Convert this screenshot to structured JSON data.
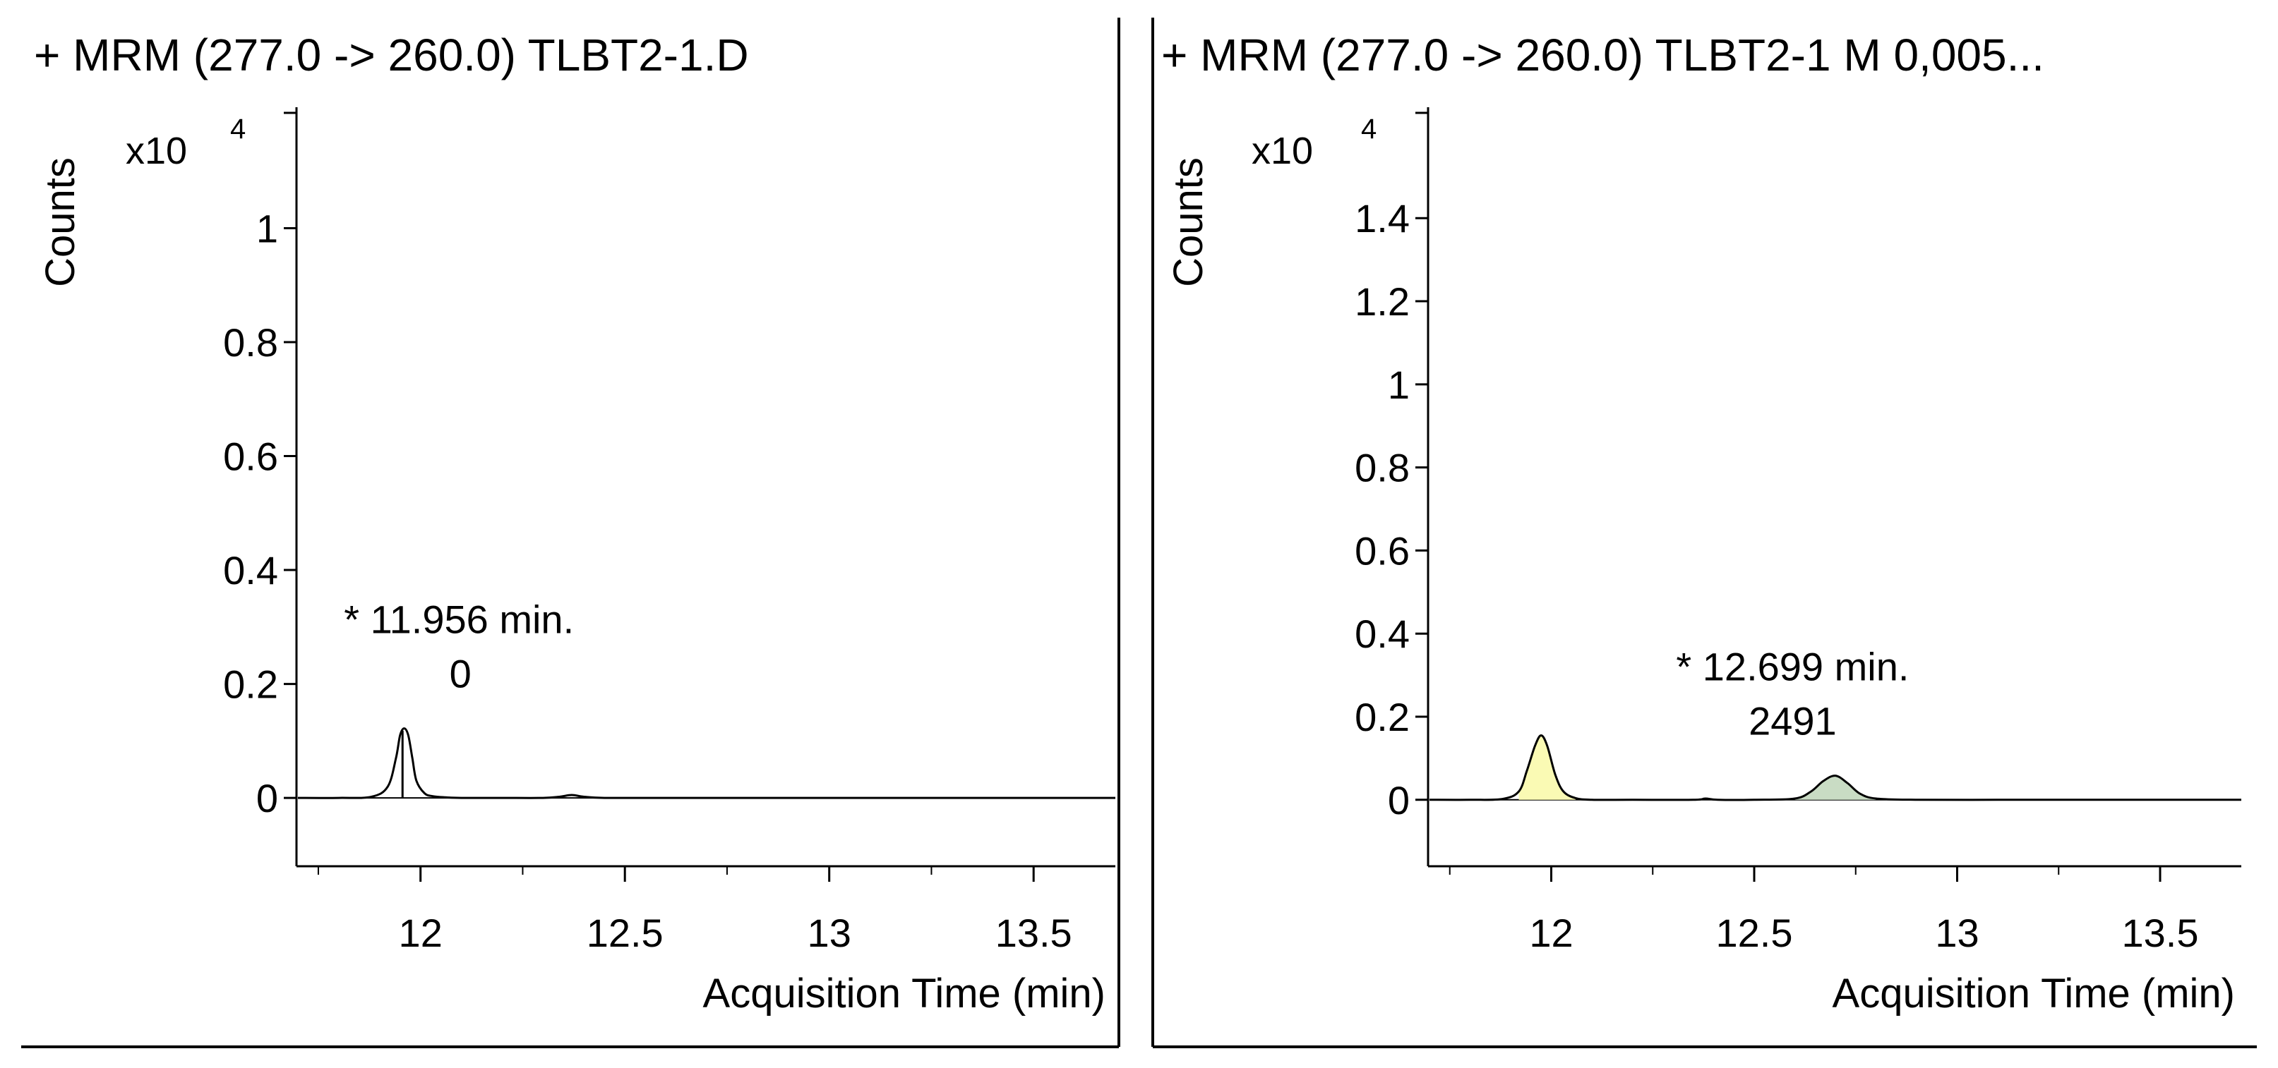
{
  "chart_data": [
    {
      "type": "line",
      "title": "+ MRM (277.0 -> 260.0) TLBT2-1.D",
      "xlabel": "Acquisition Time (min)",
      "ylabel": "Counts",
      "y_multiplier_base": "x10",
      "y_multiplier_exp": "4",
      "xlim": [
        11.7,
        13.7
      ],
      "ylim": [
        -0.12,
        1.2
      ],
      "x_ticks": [
        12,
        12.5,
        13,
        13.5
      ],
      "x_tick_labels": [
        "12",
        "12.5",
        "13",
        "13.5"
      ],
      "y_ticks": [
        0,
        0.2,
        0.4,
        0.6,
        0.8,
        1
      ],
      "y_tick_labels": [
        "0",
        "0.2",
        "0.4",
        "0.6",
        "0.8",
        "1"
      ],
      "series": [
        {
          "x": [
            11.7,
            11.8,
            11.88,
            11.92,
            11.94,
            11.95,
            11.96,
            11.97,
            11.98,
            11.99,
            12.01,
            12.03,
            12.06,
            12.1,
            12.2,
            12.3,
            12.34,
            12.37,
            12.4,
            12.45,
            12.6,
            12.8,
            13.0,
            13.2,
            13.4,
            13.6,
            13.7
          ],
          "y": [
            0.0,
            0.0,
            0.002,
            0.02,
            0.07,
            0.11,
            0.122,
            0.11,
            0.07,
            0.03,
            0.008,
            0.003,
            0.001,
            0.0,
            0.0,
            0.0,
            0.002,
            0.005,
            0.002,
            0.0,
            0.0,
            0.0,
            0.0,
            0.0,
            0.0,
            0.0,
            0.0
          ],
          "color": "#000000"
        }
      ],
      "peaks": [
        {
          "rt": 11.956,
          "label_rt": "* 11.956 min.",
          "label_area": "0",
          "fill": "none",
          "marker_line": true
        }
      ]
    },
    {
      "type": "line",
      "title": "+ MRM (277.0 -> 260.0) TLBT2-1 M 0,005...",
      "xlabel": "Acquisition Time (min)",
      "ylabel": "Counts",
      "y_multiplier_base": "x10",
      "y_multiplier_exp": "4",
      "xlim": [
        11.7,
        13.7
      ],
      "ylim": [
        -0.16,
        1.65
      ],
      "x_ticks": [
        12,
        12.5,
        13,
        13.5
      ],
      "x_tick_labels": [
        "12",
        "12.5",
        "13",
        "13.5"
      ],
      "y_ticks": [
        0,
        0.2,
        0.4,
        0.6,
        0.8,
        1,
        1.2,
        1.4
      ],
      "y_tick_labels": [
        "0",
        "0.2",
        "0.4",
        "0.6",
        "0.8",
        "1",
        "1.2",
        "1.4"
      ],
      "series": [
        {
          "x": [
            11.7,
            11.8,
            11.88,
            11.92,
            11.94,
            11.96,
            11.975,
            11.99,
            12.01,
            12.03,
            12.06,
            12.1,
            12.2,
            12.35,
            12.38,
            12.41,
            12.5,
            12.6,
            12.64,
            12.67,
            12.7,
            12.73,
            12.76,
            12.8,
            12.9,
            13.1,
            13.3,
            13.5,
            13.7
          ],
          "y": [
            0.0,
            0.0,
            0.002,
            0.02,
            0.07,
            0.13,
            0.155,
            0.13,
            0.06,
            0.02,
            0.004,
            0.0,
            0.0,
            0.0,
            0.003,
            0.0,
            0.0,
            0.003,
            0.02,
            0.045,
            0.058,
            0.04,
            0.015,
            0.003,
            0.0,
            0.0,
            0.0,
            0.0,
            0.0
          ],
          "color": "#000000"
        }
      ],
      "peaks": [
        {
          "rt": 11.975,
          "label_rt": "",
          "label_area": "",
          "fill": "#fafab4",
          "range": [
            11.92,
            12.06
          ]
        },
        {
          "rt": 12.699,
          "label_rt": "* 12.699 min.",
          "label_area": "2491",
          "fill": "#c9dcc4",
          "range": [
            12.6,
            12.82
          ]
        }
      ]
    }
  ]
}
